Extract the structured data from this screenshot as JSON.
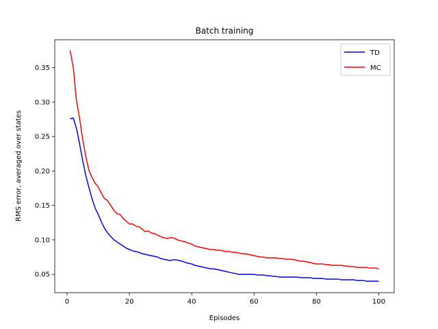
{
  "chart_data": {
    "type": "line",
    "title": "Batch training",
    "xlabel": "Episodes",
    "ylabel": "RMS error, averaged over states",
    "xlim": [
      -3.95,
      104.95
    ],
    "ylim": [
      0.0233,
      0.3905
    ],
    "x_ticks": [
      0,
      20,
      40,
      60,
      80,
      100
    ],
    "y_ticks": [
      0.05,
      0.1,
      0.15,
      0.2,
      0.25,
      0.3,
      0.35
    ],
    "y_tick_labels": [
      "0.05",
      "0.10",
      "0.15",
      "0.20",
      "0.25",
      "0.30",
      "0.35"
    ],
    "grid": false,
    "legend_position": "top-right",
    "x": [
      1,
      2,
      3,
      4,
      5,
      6,
      7,
      8,
      9,
      10,
      11,
      12,
      13,
      14,
      15,
      16,
      17,
      18,
      19,
      20,
      21,
      22,
      23,
      24,
      25,
      26,
      27,
      28,
      29,
      30,
      31,
      32,
      33,
      34,
      35,
      36,
      37,
      38,
      39,
      40,
      41,
      42,
      43,
      44,
      45,
      46,
      47,
      48,
      49,
      50,
      51,
      52,
      53,
      54,
      55,
      56,
      57,
      58,
      59,
      60,
      61,
      62,
      63,
      64,
      65,
      66,
      67,
      68,
      69,
      70,
      71,
      72,
      73,
      74,
      75,
      76,
      77,
      78,
      79,
      80,
      81,
      82,
      83,
      84,
      85,
      86,
      87,
      88,
      89,
      90,
      91,
      92,
      93,
      94,
      95,
      96,
      97,
      98,
      99,
      100
    ],
    "series": [
      {
        "name": "TD",
        "color": "#0000ff",
        "values": [
          0.276,
          0.277,
          0.262,
          0.24,
          0.215,
          0.194,
          0.176,
          0.16,
          0.146,
          0.137,
          0.126,
          0.117,
          0.11,
          0.105,
          0.1,
          0.097,
          0.094,
          0.091,
          0.088,
          0.086,
          0.084,
          0.083,
          0.082,
          0.08,
          0.079,
          0.078,
          0.077,
          0.076,
          0.075,
          0.073,
          0.072,
          0.071,
          0.07,
          0.071,
          0.071,
          0.07,
          0.069,
          0.067,
          0.066,
          0.065,
          0.063,
          0.062,
          0.061,
          0.06,
          0.059,
          0.058,
          0.058,
          0.057,
          0.056,
          0.055,
          0.054,
          0.053,
          0.052,
          0.051,
          0.05,
          0.05,
          0.05,
          0.05,
          0.05,
          0.05,
          0.049,
          0.049,
          0.049,
          0.048,
          0.048,
          0.047,
          0.047,
          0.046,
          0.046,
          0.046,
          0.046,
          0.046,
          0.046,
          0.046,
          0.045,
          0.045,
          0.045,
          0.045,
          0.044,
          0.044,
          0.044,
          0.044,
          0.043,
          0.043,
          0.043,
          0.043,
          0.043,
          0.042,
          0.042,
          0.042,
          0.042,
          0.042,
          0.041,
          0.041,
          0.041,
          0.04,
          0.04,
          0.04,
          0.04,
          0.04
        ]
      },
      {
        "name": "MC",
        "color": "#ff0000",
        "values": [
          0.375,
          0.35,
          0.302,
          0.277,
          0.246,
          0.221,
          0.201,
          0.191,
          0.182,
          0.177,
          0.168,
          0.16,
          0.157,
          0.15,
          0.143,
          0.138,
          0.137,
          0.131,
          0.127,
          0.123,
          0.123,
          0.12,
          0.119,
          0.116,
          0.112,
          0.113,
          0.11,
          0.109,
          0.107,
          0.105,
          0.103,
          0.102,
          0.103,
          0.103,
          0.101,
          0.099,
          0.098,
          0.097,
          0.095,
          0.094,
          0.091,
          0.09,
          0.089,
          0.088,
          0.087,
          0.086,
          0.086,
          0.085,
          0.085,
          0.084,
          0.083,
          0.083,
          0.082,
          0.082,
          0.081,
          0.08,
          0.08,
          0.079,
          0.078,
          0.077,
          0.076,
          0.075,
          0.075,
          0.074,
          0.074,
          0.074,
          0.074,
          0.073,
          0.073,
          0.072,
          0.072,
          0.072,
          0.071,
          0.07,
          0.069,
          0.069,
          0.068,
          0.067,
          0.066,
          0.065,
          0.065,
          0.065,
          0.064,
          0.064,
          0.063,
          0.063,
          0.063,
          0.063,
          0.062,
          0.062,
          0.061,
          0.061,
          0.06,
          0.06,
          0.06,
          0.06,
          0.059,
          0.059,
          0.059,
          0.058
        ]
      }
    ]
  }
}
